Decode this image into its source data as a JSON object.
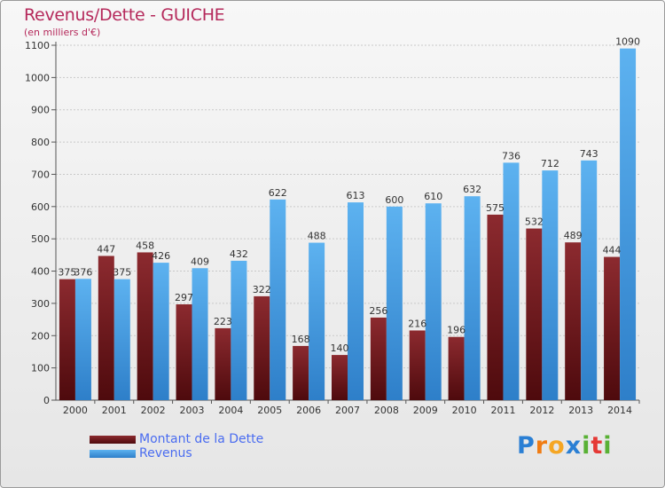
{
  "chart_data": {
    "type": "bar",
    "title": "Revenus/Dette - GUICHE",
    "subtitle": "(en milliers d'€)",
    "categories": [
      "2000",
      "2001",
      "2002",
      "2003",
      "2004",
      "2005",
      "2006",
      "2007",
      "2008",
      "2009",
      "2010",
      "2011",
      "2012",
      "2013",
      "2014"
    ],
    "series": [
      {
        "name": "Montant de la Dette",
        "color": "#7a1f24",
        "values": [
          375,
          447,
          458,
          297,
          223,
          322,
          168,
          140,
          256,
          216,
          196,
          575,
          532,
          489,
          444
        ]
      },
      {
        "name": "Revenus",
        "color": "#4da3e8",
        "values": [
          376,
          375,
          426,
          409,
          432,
          622,
          488,
          613,
          600,
          610,
          632,
          736,
          712,
          743,
          1090
        ]
      }
    ],
    "ylim": [
      0,
      1100
    ],
    "yticks": [
      0,
      100,
      200,
      300,
      400,
      500,
      600,
      700,
      800,
      900,
      1000,
      1100
    ],
    "grid": true,
    "xlabel": "",
    "ylabel": "",
    "legend_position": "bottom-left"
  },
  "logo": {
    "letters": [
      "P",
      "r",
      "o",
      "x",
      "i",
      "t",
      "i"
    ],
    "colors": [
      "#2a7fd4",
      "#f07c13",
      "#f5a623",
      "#2a7fd4",
      "#59b135",
      "#e53935",
      "#59b135"
    ]
  }
}
